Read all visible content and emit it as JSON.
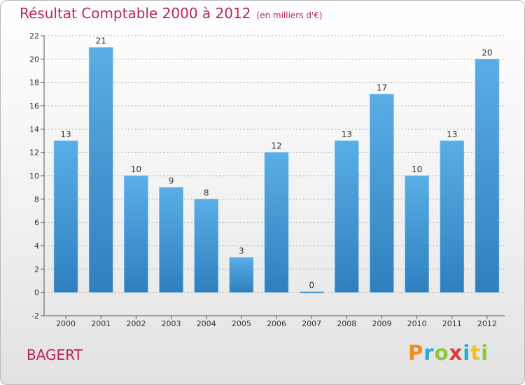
{
  "title": "Résultat Comptable 2000 à 2012",
  "subtitle": "(en milliers d'€)",
  "commune": "BAGERT",
  "logo": {
    "text": "Proxiti",
    "letters": [
      "P",
      "r",
      "o",
      "x",
      "i",
      "t",
      "i"
    ],
    "colors": [
      "#f28c1e",
      "#2aa8d8",
      "#8cc63f",
      "#e03a3a",
      "#2aa8d8",
      "#f2c21e",
      "#8cc63f"
    ]
  },
  "colors": {
    "title": "#c0235a",
    "bar_top": "#5aaee6",
    "bar_bottom": "#2f7fbf",
    "grid": "#b0b0b0"
  },
  "chart_data": {
    "type": "bar",
    "title": "Résultat Comptable 2000 à 2012",
    "ylabel": "en milliers d'€",
    "xlabel": "",
    "categories": [
      "2000",
      "2001",
      "2002",
      "2003",
      "2004",
      "2005",
      "2006",
      "2007",
      "2008",
      "2009",
      "2010",
      "2011",
      "2012"
    ],
    "values": [
      13,
      21,
      10,
      9,
      8,
      3,
      12,
      0,
      13,
      17,
      10,
      13,
      20
    ],
    "yticks": [
      -2,
      0,
      2,
      4,
      6,
      8,
      10,
      12,
      14,
      16,
      18,
      20,
      22
    ],
    "ylim": [
      -2,
      22
    ],
    "grid": true
  }
}
